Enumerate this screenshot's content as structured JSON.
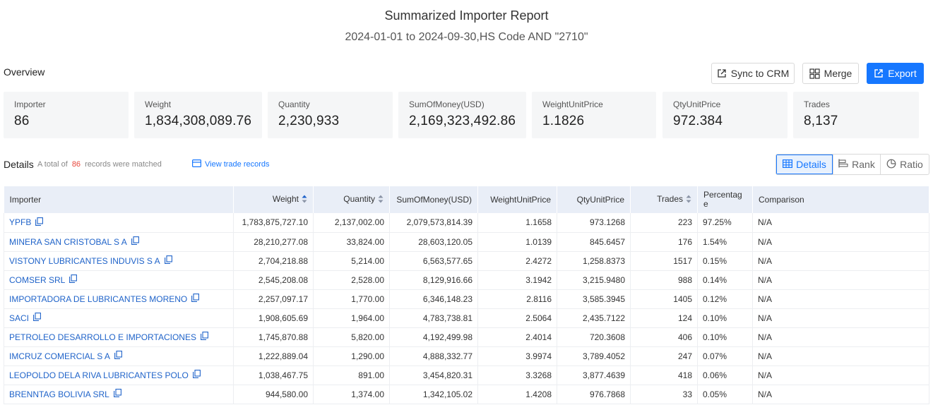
{
  "report": {
    "title": "Summarized Importer Report",
    "subtitle": "2024-01-01 to 2024-09-30,HS Code AND \"2710\""
  },
  "overview": {
    "label": "Overview",
    "buttons": {
      "sync": "Sync to CRM",
      "merge": "Merge",
      "export": "Export"
    },
    "cards": [
      {
        "label": "Importer",
        "value": "86"
      },
      {
        "label": "Weight",
        "value": "1,834,308,089.76"
      },
      {
        "label": "Quantity",
        "value": "2,230,933"
      },
      {
        "label": "SumOfMoney(USD)",
        "value": "2,169,323,492.86"
      },
      {
        "label": "WeightUnitPrice",
        "value": "1.1826"
      },
      {
        "label": "QtyUnitPrice",
        "value": "972.384"
      },
      {
        "label": "Trades",
        "value": "8,137"
      }
    ]
  },
  "details": {
    "label": "Details",
    "summary_prefix": "A total of",
    "count": "86",
    "summary_suffix": "records were matched",
    "view_trade_records": "View trade records",
    "views": [
      "Details",
      "Rank",
      "Ratio"
    ],
    "active_view": "Details"
  },
  "table": {
    "columns": [
      "Importer",
      "Weight",
      "Quantity",
      "SumOfMoney(USD)",
      "WeightUnitPrice",
      "QtyUnitPrice",
      "Trades",
      "Percentage",
      "Comparison"
    ],
    "percentage_header_line1": "Percentag",
    "percentage_header_line2": "e",
    "rows": [
      {
        "importer": "YPFB",
        "weight": "1,783,875,727.10",
        "quantity": "2,137,002.00",
        "money": "2,079,573,814.39",
        "wup": "1.1658",
        "qup": "973.1268",
        "trades": "223",
        "pct": "97.25%",
        "cmp": "N/A"
      },
      {
        "importer": "MINERA SAN CRISTOBAL S A",
        "weight": "28,210,277.08",
        "quantity": "33,824.00",
        "money": "28,603,120.05",
        "wup": "1.0139",
        "qup": "845.6457",
        "trades": "176",
        "pct": "1.54%",
        "cmp": "N/A"
      },
      {
        "importer": "VISTONY LUBRICANTES INDUVIS S A",
        "weight": "2,704,218.88",
        "quantity": "5,214.00",
        "money": "6,563,577.65",
        "wup": "2.4272",
        "qup": "1,258.8373",
        "trades": "1517",
        "pct": "0.15%",
        "cmp": "N/A"
      },
      {
        "importer": "COMSER SRL",
        "weight": "2,545,208.08",
        "quantity": "2,528.00",
        "money": "8,129,916.66",
        "wup": "3.1942",
        "qup": "3,215.9480",
        "trades": "988",
        "pct": "0.14%",
        "cmp": "N/A"
      },
      {
        "importer": "IMPORTADORA DE LUBRICANTES MORENO",
        "weight": "2,257,097.17",
        "quantity": "1,770.00",
        "money": "6,346,148.23",
        "wup": "2.8116",
        "qup": "3,585.3945",
        "trades": "1405",
        "pct": "0.12%",
        "cmp": "N/A"
      },
      {
        "importer": "SACI",
        "weight": "1,908,605.69",
        "quantity": "1,964.00",
        "money": "4,783,738.81",
        "wup": "2.5064",
        "qup": "2,435.7122",
        "trades": "124",
        "pct": "0.10%",
        "cmp": "N/A"
      },
      {
        "importer": "PETROLEO DESARROLLO E IMPORTACIONES",
        "weight": "1,745,870.88",
        "quantity": "5,820.00",
        "money": "4,192,499.98",
        "wup": "2.4014",
        "qup": "720.3608",
        "trades": "406",
        "pct": "0.10%",
        "cmp": "N/A"
      },
      {
        "importer": "IMCRUZ COMERCIAL S A",
        "weight": "1,222,889.04",
        "quantity": "1,290.00",
        "money": "4,888,332.77",
        "wup": "3.9974",
        "qup": "3,789.4052",
        "trades": "247",
        "pct": "0.07%",
        "cmp": "N/A"
      },
      {
        "importer": "LEOPOLDO DELA RIVA LUBRICANTES POLO",
        "weight": "1,038,467.75",
        "quantity": "891.00",
        "money": "3,454,820.31",
        "wup": "3.3268",
        "qup": "3,877.4639",
        "trades": "418",
        "pct": "0.06%",
        "cmp": "N/A"
      },
      {
        "importer": "BRENNTAG BOLIVIA SRL",
        "weight": "944,580.00",
        "quantity": "1,374.00",
        "money": "1,342,105.02",
        "wup": "1.4208",
        "qup": "976.7868",
        "trades": "33",
        "pct": "0.05%",
        "cmp": "N/A"
      }
    ]
  },
  "colors": {
    "accent": "#1677ff",
    "link": "#1f63c9",
    "count": "#e8473c",
    "header_bg": "#e9eef7",
    "card_bg": "#f5f6f7"
  },
  "icons": {
    "sync": "external-link-icon",
    "merge": "merge-icon",
    "export": "export-icon",
    "view": "list-card-icon",
    "copy": "copy-icon",
    "sort": "sort-icon",
    "details": "table-icon",
    "rank": "bar-rank-icon",
    "ratio": "pie-icon"
  }
}
